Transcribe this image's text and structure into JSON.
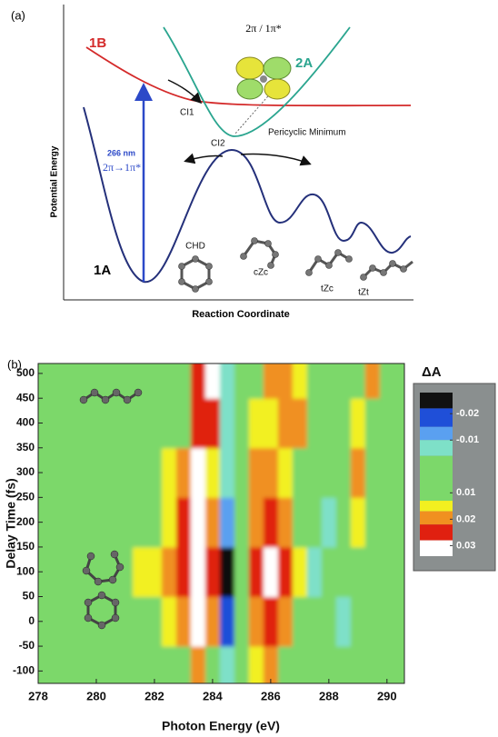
{
  "chart_data": [
    {
      "type": "diagram",
      "label": "(a)",
      "state_labels": [
        "1B",
        "2A",
        "1A"
      ],
      "orbital_label": "2π / 1π*",
      "ci_labels": [
        "CI1",
        "CI2"
      ],
      "minimum_label": "Pericyclic Minimum",
      "excitation": [
        "266 nm",
        "2π→1π*"
      ],
      "y_label": "Potential Energy",
      "x_label": "Reaction Coordinate",
      "molecules": [
        "CHD",
        "cZc",
        "tZc",
        "tZt"
      ]
    },
    {
      "type": "heatmap",
      "label": "(b)",
      "x_label": "Photon Energy (eV)",
      "y_label": "Delay Time (fs)",
      "colorbar_title": "ΔA",
      "x": [
        278,
        278.5,
        279,
        279.5,
        280,
        280.5,
        281,
        281.5,
        282,
        282.5,
        283,
        283.5,
        284,
        284.5,
        285,
        285.5,
        286,
        286.5,
        287,
        287.5,
        288,
        288.5,
        289,
        289.5,
        290,
        290.5
      ],
      "y": [
        -100,
        0,
        100,
        200,
        300,
        400,
        500
      ],
      "z": [
        [
          0.005,
          0.005,
          0.005,
          0.005,
          0.005,
          0.005,
          0.005,
          0.005,
          0.005,
          0.008,
          0.012,
          0.02,
          0.01,
          -0.008,
          0.005,
          0.015,
          0.018,
          0.012,
          0.005,
          0.005,
          0.005,
          0.005,
          0.005,
          0.005,
          0.005,
          0.005
        ],
        [
          0.005,
          0.005,
          0.005,
          0.005,
          0.005,
          0.005,
          0.005,
          0.005,
          0.008,
          0.015,
          0.02,
          0.03,
          0.018,
          -0.02,
          0.005,
          0.02,
          0.025,
          0.02,
          0.012,
          0.005,
          0.005,
          -0.008,
          0.005,
          0.005,
          0.005,
          0.005
        ],
        [
          0.005,
          0.005,
          0.005,
          0.005,
          0.005,
          0.005,
          0.008,
          0.014,
          0.016,
          0.02,
          0.025,
          0.032,
          0.024,
          -0.024,
          0.008,
          0.022,
          0.028,
          0.022,
          0.015,
          -0.008,
          0.005,
          0.012,
          0.005,
          0.005,
          0.005,
          0.005
        ],
        [
          0.005,
          0.005,
          0.005,
          0.005,
          0.005,
          0.005,
          0.005,
          0.005,
          0.012,
          0.016,
          0.022,
          0.03,
          0.02,
          -0.012,
          0.008,
          0.02,
          0.024,
          0.018,
          0.01,
          0.005,
          -0.006,
          0.005,
          0.016,
          0.005,
          0.005,
          0.005
        ],
        [
          0.005,
          0.005,
          0.005,
          0.005,
          0.005,
          0.005,
          0.005,
          0.005,
          0.005,
          0.014,
          0.018,
          0.03,
          0.016,
          -0.01,
          0.005,
          0.018,
          0.02,
          0.015,
          0.008,
          0.005,
          0.005,
          0.005,
          0.02,
          0.005,
          0.005,
          0.005
        ],
        [
          0.005,
          0.005,
          0.005,
          0.005,
          0.005,
          0.005,
          0.005,
          0.005,
          0.005,
          0.005,
          0.005,
          0.024,
          0.026,
          -0.008,
          0.005,
          0.015,
          0.014,
          0.018,
          0.02,
          0.012,
          0.005,
          0.005,
          0.016,
          0.005,
          0.005,
          0.005
        ],
        [
          0.005,
          0.005,
          0.005,
          0.005,
          0.005,
          0.005,
          0.005,
          0.005,
          0.005,
          0.005,
          0.005,
          0.026,
          0.03,
          -0.006,
          0.005,
          0.012,
          0.018,
          0.02,
          0.014,
          0.005,
          0.005,
          0.005,
          0.005,
          0.02,
          0.005,
          0.005
        ]
      ],
      "xlim": [
        278,
        290.6
      ],
      "ylim": [
        -125,
        520
      ],
      "xticks": [
        278,
        280,
        282,
        284,
        286,
        288,
        290
      ],
      "yticks": [
        -100,
        -50,
        0,
        50,
        100,
        150,
        200,
        250,
        300,
        350,
        400,
        450,
        500
      ],
      "zlim": [
        -0.028,
        0.034
      ],
      "zticks": [
        -0.02,
        -0.01,
        0.01,
        0.02,
        0.03
      ],
      "levels": [
        -0.028,
        -0.022,
        -0.015,
        -0.01,
        -0.004,
        0.013,
        0.017,
        0.022,
        0.028,
        0.034
      ],
      "level_colors": [
        "#111111",
        "#1f4fd8",
        "#5aa0f0",
        "#7ee0c8",
        "#7cd86a",
        "#f2f020",
        "#f09020",
        "#e02010",
        "#ffffff"
      ]
    }
  ]
}
